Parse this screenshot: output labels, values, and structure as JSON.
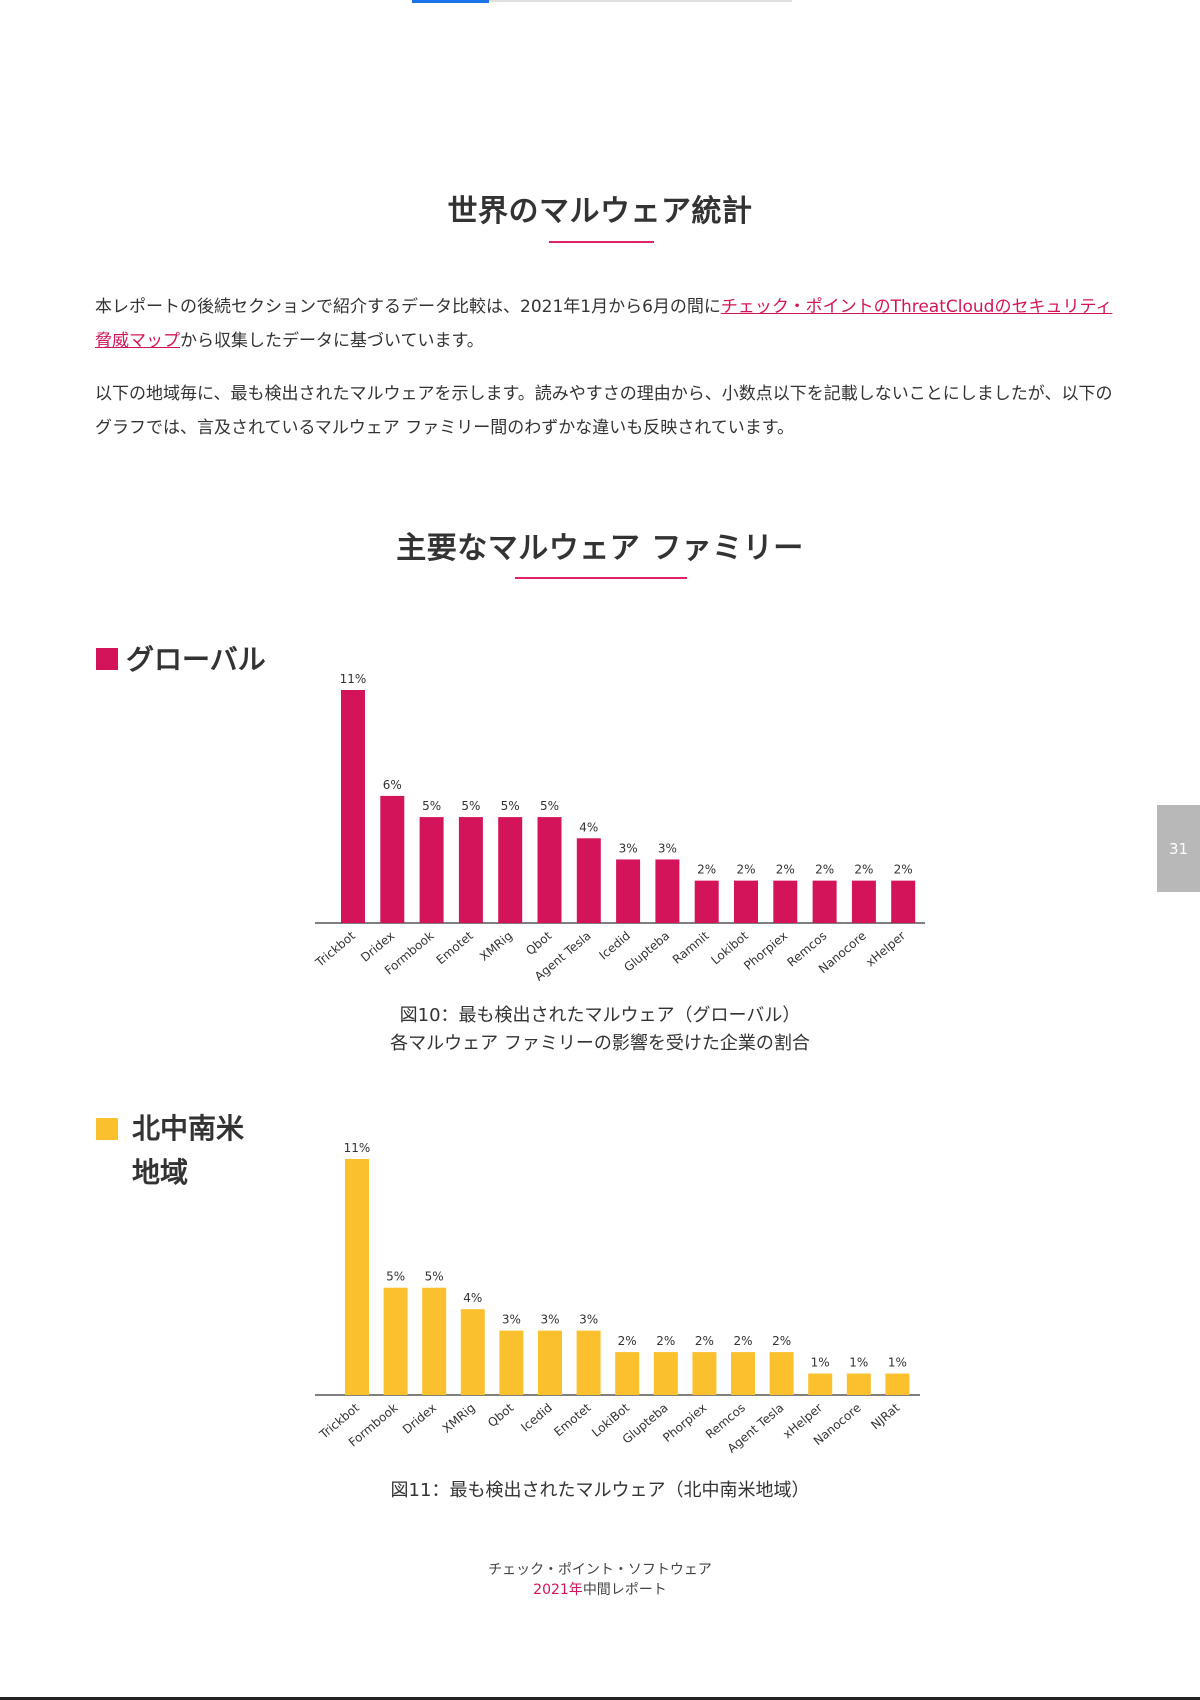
{
  "headings": {
    "section": "世界のマルウェア統計",
    "chart_section": "主要なマルウェア ファミリー"
  },
  "intro": {
    "p1_before": "本レポートの後続セクションで紹介するデータ比較は、2021年1月から6月の間に",
    "p1_link": "チェック・ポイントのThreatCloudのセキュリティ脅威マップ",
    "p1_after": "から収集したデータに基づいています。",
    "p2": "以下の地域毎に、最も検出されたマルウェアを示します。読みやすさの理由から、小数点以下を記載しないことにしましたが、以下のグラフでは、言及されているマルウェア ファミリー間のわずかな違いも反映されています。"
  },
  "regions": {
    "global_label": "グローバル",
    "americas_label_1": "北中南米",
    "americas_label_2": "地域"
  },
  "captions": {
    "fig10_line1": "図10：最も検出されたマルウェア（グローバル）",
    "fig10_line2": "各マルウェア ファミリーの影響を受けた企業の割合",
    "fig11_line1": "図11：最も検出されたマルウェア（北中南米地域）"
  },
  "page_number": "31",
  "footer": {
    "line1": "チェック・ポイント・ソフトウェア",
    "line2_year": "2021年",
    "line2_rest": "中間レポート"
  },
  "colors": {
    "global": "#d4145a",
    "americas": "#fbc02d",
    "accent": "#e0226e"
  },
  "chart_data": [
    {
      "type": "bar",
      "title": "",
      "categories": [
        "Trickbot",
        "Dridex",
        "Formbook",
        "Emotet",
        "XMRig",
        "Qbot",
        "Agent Tesla",
        "Icedid",
        "Glupteba",
        "Ramnit",
        "Lokibot",
        "Phorpiex",
        "Remcos",
        "Nanocore",
        "xHelper"
      ],
      "values": [
        11,
        6,
        5,
        5,
        5,
        5,
        4,
        3,
        3,
        2,
        2,
        2,
        2,
        2,
        2
      ],
      "labels": [
        "11%",
        "6%",
        "5%",
        "5%",
        "5%",
        "5%",
        "4%",
        "3%",
        "3%",
        "2%",
        "2%",
        "2%",
        "2%",
        "2%",
        "2%"
      ],
      "color": "#d4145a",
      "ylim": [
        0,
        11
      ],
      "grid": false
    },
    {
      "type": "bar",
      "title": "",
      "categories": [
        "Trickbot",
        "Formbook",
        "Dridex",
        "XMRig",
        "Qbot",
        "Icedid",
        "Emotet",
        "LokiBot",
        "Glupteba",
        "Phorpiex",
        "Remcos",
        "Agent Tesla",
        "xHelper",
        "Nanocore",
        "NJRat"
      ],
      "values": [
        11,
        5,
        5,
        4,
        3,
        3,
        3,
        2,
        2,
        2,
        2,
        2,
        1,
        1,
        1
      ],
      "labels": [
        "11%",
        "5%",
        "5%",
        "4%",
        "3%",
        "3%",
        "3%",
        "2%",
        "2%",
        "2%",
        "2%",
        "2%",
        "1%",
        "1%",
        "1%"
      ],
      "color": "#fbc02d",
      "ylim": [
        0,
        11
      ],
      "grid": false
    }
  ]
}
